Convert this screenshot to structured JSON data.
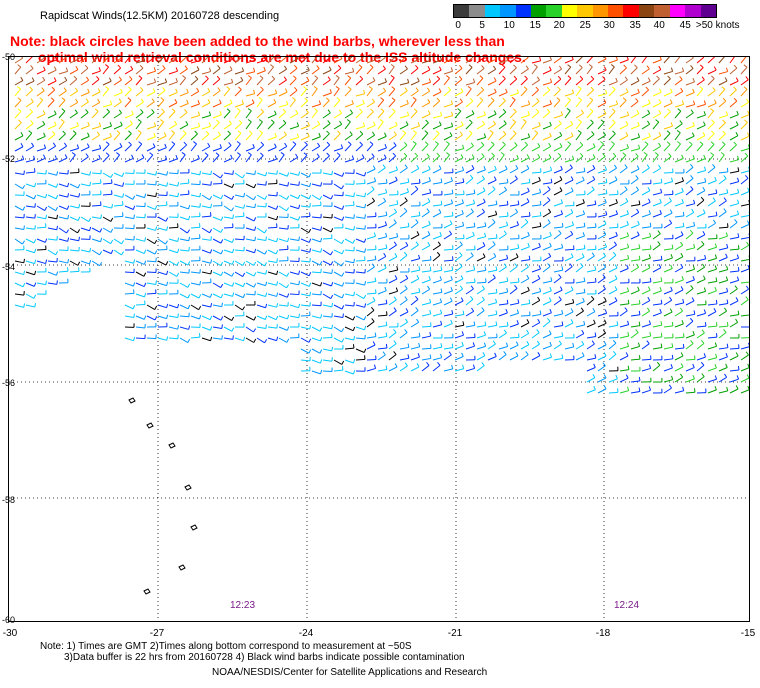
{
  "title": "Rapidscat Winds(12.5KM) 20160728 descending",
  "note_line1": "Note: black circles have been added to the wind barbs, wherever less than",
  "note_line2": "optimal wind retrieval conditions are met due to the ISS altitude changes.",
  "colorbar": {
    "colors": [
      "#3c3c3c",
      "#8c8c8c",
      "#00c8ff",
      "#0096ff",
      "#0032ff",
      "#00a000",
      "#28d228",
      "#ffff00",
      "#ffc800",
      "#ff9600",
      "#ff5000",
      "#ff0000",
      "#8b4513",
      "#c06030",
      "#ff00ff",
      "#b000d0",
      "#600090"
    ],
    "labels": [
      "0",
      "5",
      "10",
      "15",
      "20",
      "25",
      "30",
      "35",
      "40",
      "45",
      ">50 knots"
    ]
  },
  "map": {
    "lat_labels": [
      "-50",
      "-52",
      "-54",
      "-56",
      "-58",
      "-60"
    ],
    "lon_labels": [
      "-30",
      "-27",
      "-24",
      "-21",
      "-18",
      "-15"
    ],
    "time_labels": [
      "12:23",
      "12:24"
    ]
  },
  "footer": {
    "line1": "Note: 1) Times are GMT 2)Times along bottom correspond to measurement at ~50S",
    "line2": "3)Data buffer is 22 hrs from 20160728 4) Black wind barbs indicate possible contamination",
    "credit": "NOAA/NESDIS/Center for Satellite Applications and Research"
  }
}
